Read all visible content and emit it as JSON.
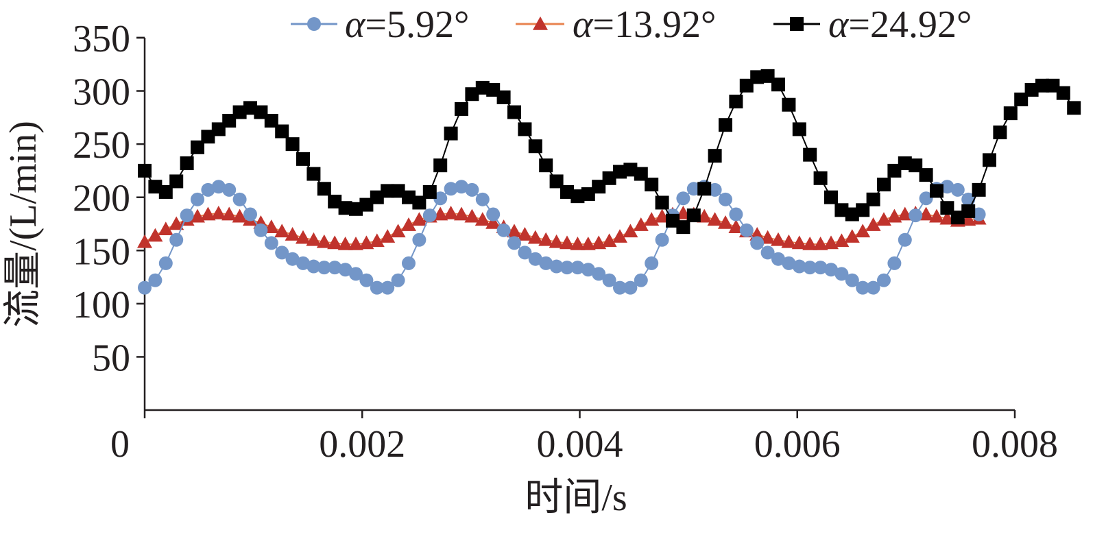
{
  "chart_data": {
    "type": "line",
    "xlabel": "时间/s",
    "ylabel": "流量/(L/min)",
    "xlim": [
      0,
      0.008
    ],
    "ylim": [
      0,
      350
    ],
    "x_ticks": [
      "0",
      "0.002",
      "0.004",
      "0.006",
      "0.008"
    ],
    "y_ticks": [
      "50",
      "100",
      "150",
      "200",
      "250",
      "300",
      "350"
    ],
    "legend_position": "top",
    "grid": false,
    "keyframe_step": 0.0001,
    "series": [
      {
        "name": "α=5.92°",
        "color": "#7396c8",
        "marker": "circle",
        "keyframes": [
          [
            0.0,
            115
          ],
          [
            0.0001,
            122
          ],
          [
            0.0002,
            138
          ],
          [
            0.0003,
            160
          ],
          [
            0.0004,
            183
          ],
          [
            0.0005,
            198
          ],
          [
            0.0006,
            207
          ],
          [
            0.0007,
            210
          ],
          [
            0.0008,
            207
          ],
          [
            0.0009,
            198
          ],
          [
            0.001,
            184
          ],
          [
            0.0011,
            169
          ],
          [
            0.0012,
            157
          ],
          [
            0.0013,
            148
          ],
          [
            0.0014,
            142
          ],
          [
            0.0015,
            138
          ],
          [
            0.0016,
            135
          ],
          [
            0.0017,
            134
          ],
          [
            0.0018,
            134
          ],
          [
            0.0019,
            132
          ],
          [
            0.002,
            128
          ],
          [
            0.0021,
            122
          ],
          [
            0.0022,
            115
          ],
          [
            0.0023,
            115
          ],
          [
            0.0024,
            122
          ],
          [
            0.0025,
            138
          ],
          [
            0.0026,
            160
          ],
          [
            0.0027,
            183
          ],
          [
            0.0028,
            199
          ],
          [
            0.0029,
            208
          ],
          [
            0.003,
            210
          ],
          [
            0.0031,
            207
          ],
          [
            0.0032,
            198
          ],
          [
            0.0033,
            184
          ],
          [
            0.0034,
            169
          ],
          [
            0.0035,
            157
          ],
          [
            0.0036,
            148
          ],
          [
            0.0037,
            142
          ],
          [
            0.0038,
            138
          ],
          [
            0.0039,
            135
          ],
          [
            0.004,
            134
          ],
          [
            0.0041,
            134
          ],
          [
            0.0042,
            132
          ],
          [
            0.0043,
            128
          ],
          [
            0.0044,
            122
          ],
          [
            0.0045,
            115
          ],
          [
            0.0046,
            115
          ],
          [
            0.0047,
            122
          ],
          [
            0.0048,
            138
          ],
          [
            0.0049,
            160
          ],
          [
            0.005,
            183
          ],
          [
            0.0051,
            199
          ],
          [
            0.0052,
            208
          ],
          [
            0.0053,
            210
          ],
          [
            0.0054,
            207
          ],
          [
            0.0055,
            198
          ],
          [
            0.0056,
            184
          ],
          [
            0.0057,
            169
          ],
          [
            0.0058,
            157
          ],
          [
            0.0059,
            148
          ],
          [
            0.006,
            142
          ],
          [
            0.0061,
            138
          ],
          [
            0.0062,
            135
          ],
          [
            0.0063,
            134
          ],
          [
            0.0064,
            134
          ],
          [
            0.0065,
            132
          ],
          [
            0.0066,
            128
          ],
          [
            0.0067,
            122
          ],
          [
            0.0068,
            115
          ],
          [
            0.0069,
            115
          ],
          [
            0.007,
            122
          ],
          [
            0.0071,
            138
          ],
          [
            0.0072,
            160
          ],
          [
            0.0073,
            183
          ],
          [
            0.0074,
            199
          ],
          [
            0.0075,
            208
          ],
          [
            0.0076,
            210
          ],
          [
            0.0077,
            207
          ],
          [
            0.0078,
            198
          ],
          [
            0.0079,
            184
          ]
        ]
      },
      {
        "name": "α=13.92°",
        "color": "#c0332c",
        "line_color": "#e8834f",
        "marker": "triangle",
        "keyframes": [
          [
            0.0,
            158
          ],
          [
            0.0001,
            164
          ],
          [
            0.0002,
            170
          ],
          [
            0.0003,
            175
          ],
          [
            0.0004,
            179
          ],
          [
            0.0005,
            182
          ],
          [
            0.0006,
            184
          ],
          [
            0.0007,
            185
          ],
          [
            0.0008,
            184
          ],
          [
            0.0009,
            182
          ],
          [
            0.001,
            179
          ],
          [
            0.0011,
            176
          ],
          [
            0.0012,
            172
          ],
          [
            0.0013,
            168
          ],
          [
            0.0014,
            165
          ],
          [
            0.0015,
            162
          ],
          [
            0.0016,
            160
          ],
          [
            0.0017,
            158
          ],
          [
            0.0018,
            157
          ],
          [
            0.0019,
            156
          ],
          [
            0.002,
            156
          ],
          [
            0.0021,
            157
          ],
          [
            0.0022,
            159
          ],
          [
            0.0023,
            163
          ],
          [
            0.0024,
            168
          ],
          [
            0.0025,
            174
          ],
          [
            0.0026,
            179
          ],
          [
            0.0027,
            182
          ],
          [
            0.0028,
            184
          ],
          [
            0.0029,
            185
          ],
          [
            0.003,
            184
          ],
          [
            0.0031,
            182
          ],
          [
            0.0032,
            179
          ],
          [
            0.0033,
            176
          ],
          [
            0.0034,
            172
          ],
          [
            0.0035,
            168
          ],
          [
            0.0036,
            165
          ],
          [
            0.0037,
            162
          ],
          [
            0.0038,
            160
          ],
          [
            0.0039,
            158
          ],
          [
            0.004,
            157
          ],
          [
            0.0041,
            156
          ],
          [
            0.0042,
            156
          ],
          [
            0.0043,
            157
          ],
          [
            0.0044,
            159
          ],
          [
            0.0045,
            163
          ],
          [
            0.0046,
            168
          ],
          [
            0.0047,
            174
          ],
          [
            0.0048,
            179
          ],
          [
            0.0049,
            182
          ],
          [
            0.005,
            184
          ],
          [
            0.0051,
            185
          ],
          [
            0.0052,
            184
          ],
          [
            0.0053,
            182
          ],
          [
            0.0054,
            179
          ],
          [
            0.0055,
            176
          ],
          [
            0.0056,
            172
          ],
          [
            0.0057,
            168
          ],
          [
            0.0058,
            165
          ],
          [
            0.0059,
            162
          ],
          [
            0.006,
            160
          ],
          [
            0.0061,
            158
          ],
          [
            0.0062,
            157
          ],
          [
            0.0063,
            156
          ],
          [
            0.0064,
            156
          ],
          [
            0.0065,
            157
          ],
          [
            0.0066,
            159
          ],
          [
            0.0067,
            163
          ],
          [
            0.0068,
            168
          ],
          [
            0.0069,
            174
          ],
          [
            0.007,
            179
          ],
          [
            0.0071,
            182
          ],
          [
            0.0072,
            184
          ],
          [
            0.0073,
            185
          ],
          [
            0.0074,
            184
          ],
          [
            0.0075,
            182
          ],
          [
            0.0076,
            180
          ],
          [
            0.0077,
            178
          ],
          [
            0.0078,
            179
          ],
          [
            0.0079,
            180
          ]
        ]
      },
      {
        "name": "α=24.92°",
        "color": "#000000",
        "marker": "square",
        "keyframes": [
          [
            0.0,
            225
          ],
          [
            0.0001,
            210
          ],
          [
            0.0002,
            205
          ],
          [
            0.0003,
            215
          ],
          [
            0.0004,
            232
          ],
          [
            0.0005,
            247
          ],
          [
            0.0006,
            257
          ],
          [
            0.0007,
            264
          ],
          [
            0.0008,
            272
          ],
          [
            0.0009,
            280
          ],
          [
            0.001,
            284
          ],
          [
            0.0011,
            280
          ],
          [
            0.0012,
            272
          ],
          [
            0.0013,
            262
          ],
          [
            0.0014,
            250
          ],
          [
            0.0015,
            236
          ],
          [
            0.0016,
            222
          ],
          [
            0.0017,
            208
          ],
          [
            0.0018,
            196
          ],
          [
            0.0019,
            190
          ],
          [
            0.002,
            189
          ],
          [
            0.0021,
            193
          ],
          [
            0.0022,
            200
          ],
          [
            0.0023,
            206
          ],
          [
            0.0024,
            206
          ],
          [
            0.0025,
            200
          ],
          [
            0.0026,
            195
          ],
          [
            0.0027,
            205
          ],
          [
            0.0028,
            230
          ],
          [
            0.0029,
            260
          ],
          [
            0.003,
            283
          ],
          [
            0.0031,
            297
          ],
          [
            0.0032,
            303
          ],
          [
            0.0033,
            301
          ],
          [
            0.0034,
            294
          ],
          [
            0.0035,
            280
          ],
          [
            0.0036,
            264
          ],
          [
            0.0037,
            248
          ],
          [
            0.0038,
            230
          ],
          [
            0.0039,
            215
          ],
          [
            0.004,
            205
          ],
          [
            0.0041,
            201
          ],
          [
            0.0042,
            203
          ],
          [
            0.0043,
            210
          ],
          [
            0.0044,
            218
          ],
          [
            0.0045,
            224
          ],
          [
            0.0046,
            226
          ],
          [
            0.0047,
            222
          ],
          [
            0.0048,
            212
          ],
          [
            0.0049,
            195
          ],
          [
            0.005,
            178
          ],
          [
            0.0051,
            172
          ],
          [
            0.0052,
            183
          ],
          [
            0.0053,
            208
          ],
          [
            0.0054,
            239
          ],
          [
            0.0055,
            268
          ],
          [
            0.0056,
            290
          ],
          [
            0.0057,
            305
          ],
          [
            0.0058,
            313
          ],
          [
            0.0059,
            314
          ],
          [
            0.006,
            306
          ],
          [
            0.0061,
            287
          ],
          [
            0.0062,
            264
          ],
          [
            0.0063,
            240
          ],
          [
            0.0064,
            218
          ],
          [
            0.0065,
            200
          ],
          [
            0.0066,
            188
          ],
          [
            0.0067,
            184
          ],
          [
            0.0068,
            188
          ],
          [
            0.0069,
            198
          ],
          [
            0.007,
            212
          ],
          [
            0.0071,
            225
          ],
          [
            0.0072,
            232
          ],
          [
            0.0073,
            230
          ],
          [
            0.0074,
            221
          ],
          [
            0.0075,
            206
          ],
          [
            0.0076,
            190
          ],
          [
            0.0077,
            181
          ],
          [
            0.0078,
            187
          ],
          [
            0.0079,
            207
          ],
          [
            0.008,
            235
          ],
          [
            0.0081,
            261
          ],
          [
            0.0082,
            279
          ],
          [
            0.0083,
            292
          ],
          [
            0.0084,
            301
          ],
          [
            0.0085,
            305
          ],
          [
            0.0086,
            305
          ],
          [
            0.0087,
            298
          ],
          [
            0.0088,
            284
          ]
        ]
      }
    ]
  }
}
